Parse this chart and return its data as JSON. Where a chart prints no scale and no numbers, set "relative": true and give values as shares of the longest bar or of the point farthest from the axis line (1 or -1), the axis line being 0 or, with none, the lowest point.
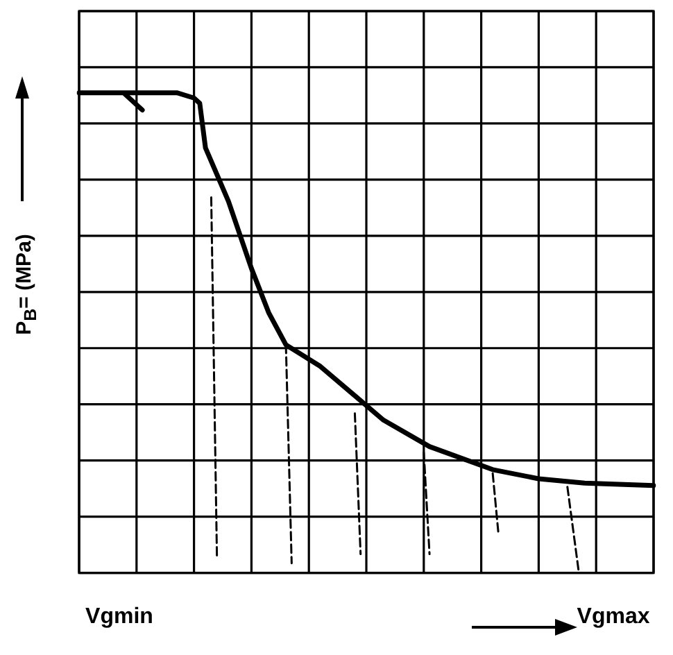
{
  "chart_data": {
    "type": "line",
    "relative": true,
    "ylabel": "P$_{B}$= (MPa)",
    "grid": true,
    "legend": false,
    "marker": "none",
    "categories": [
      null,
      null,
      null,
      null,
      null,
      null,
      null,
      "Vgmin",
      null,
      null,
      null,
      null,
      null,
      null,
      null,
      null,
      null,
      null,
      null,
      null,
      null,
      null,
      null,
      null,
      null,
      null,
      null,
      null,
      null,
      null,
      null,
      null,
      null,
      null,
      null,
      null,
      null,
      null,
      null,
      null,
      null,
      null,
      null,
      null,
      null,
      null,
      null,
      null,
      null,
      null,
      null,
      null,
      null,
      null,
      null,
      null,
      null,
      null,
      null,
      null,
      null,
      null,
      null,
      null,
      null,
      null,
      null,
      null,
      null,
      null,
      null,
      null,
      null,
      null,
      null,
      null,
      null,
      null,
      null,
      null,
      null,
      null,
      null,
      null,
      null,
      null,
      null,
      null,
      null,
      null,
      null,
      null,
      null,
      "Vgmax",
      null,
      null,
      null,
      null,
      null,
      null,
      null
    ],
    "series": [
      {
        "color": "#000000",
        "line_style": "solid",
        "values": [
          1,
          null,
          null,
          null,
          null,
          null,
          null,
          null,
          null,
          null,
          1,
          null,
          null,
          null,
          null,
          null,
          null,
          1,
          null,
          null,
          0.989,
          0.978,
          0.885,
          null,
          null,
          null,
          0.774,
          null,
          null,
          null,
          0.634,
          null,
          null,
          0.542,
          null,
          null,
          0.475,
          null,
          null,
          null,
          null,
          null,
          0.43,
          null,
          null,
          null,
          null,
          null,
          null,
          null,
          null,
          null,
          null,
          0.318,
          null,
          null,
          null,
          null,
          null,
          null,
          null,
          0.263,
          null,
          null,
          null,
          null,
          null,
          null,
          null,
          null,
          null,
          null,
          0.215,
          null,
          null,
          null,
          null,
          null,
          null,
          null,
          0.196,
          null,
          null,
          null,
          null,
          null,
          null,
          null,
          0.187,
          null,
          null,
          null,
          null,
          null,
          null,
          null,
          null,
          null,
          null,
          null,
          0.182
        ]
      },
      {
        "color": "#000000",
        "line_style": "solid",
        "values": [
          null,
          null,
          null,
          null,
          null,
          null,
          null,
          null,
          0.997,
          null,
          null,
          0.964,
          null,
          null,
          null,
          null,
          null,
          null,
          null,
          null,
          null,
          null,
          null,
          null,
          null,
          null,
          null,
          null,
          null,
          null,
          null,
          null,
          null,
          null,
          null,
          null,
          null,
          null,
          null,
          null,
          null,
          null,
          null,
          null,
          null,
          null,
          null,
          null,
          null,
          null,
          null,
          null,
          null,
          null,
          null,
          null,
          null,
          null,
          null,
          null,
          null,
          null,
          null,
          null,
          null,
          null,
          null,
          null,
          null,
          null,
          null,
          null,
          null,
          null,
          null,
          null,
          null,
          null,
          null,
          null,
          null,
          null,
          null,
          null,
          null,
          null,
          null,
          null,
          null,
          null,
          null,
          null,
          null,
          null,
          null,
          null,
          null,
          null,
          null,
          null,
          null
        ]
      },
      {
        "color": "#000000",
        "line_style": "dashed",
        "values": [
          null,
          null,
          null,
          null,
          null,
          null,
          null,
          null,
          null,
          null,
          null,
          null,
          null,
          null,
          null,
          null,
          null,
          null,
          null,
          null,
          null,
          null,
          null,
          0.782,
          0.028,
          null,
          null,
          null,
          null,
          null,
          null,
          null,
          null,
          null,
          null,
          null,
          null,
          null,
          null,
          null,
          null,
          null,
          null,
          null,
          null,
          null,
          null,
          null,
          null,
          null,
          null,
          null,
          null,
          null,
          null,
          null,
          null,
          null,
          null,
          null,
          null,
          null,
          null,
          null,
          null,
          null,
          null,
          null,
          null,
          null,
          null,
          null,
          null,
          null,
          null,
          null,
          null,
          null,
          null,
          null,
          null,
          null,
          null,
          null,
          null,
          null,
          null,
          null,
          null,
          null,
          null,
          null,
          null,
          null,
          null,
          null,
          null,
          null,
          null,
          null,
          null
        ]
      },
      {
        "color": "#000000",
        "line_style": "dashed",
        "values": [
          null,
          null,
          null,
          null,
          null,
          null,
          null,
          null,
          null,
          null,
          null,
          null,
          null,
          null,
          null,
          null,
          null,
          null,
          null,
          null,
          null,
          null,
          null,
          null,
          null,
          null,
          null,
          null,
          null,
          null,
          null,
          null,
          null,
          null,
          null,
          null,
          0.475,
          0.02,
          null,
          null,
          null,
          null,
          null,
          null,
          null,
          null,
          null,
          null,
          null,
          null,
          null,
          null,
          null,
          null,
          null,
          null,
          null,
          null,
          null,
          null,
          null,
          null,
          null,
          null,
          null,
          null,
          null,
          null,
          null,
          null,
          null,
          null,
          null,
          null,
          null,
          null,
          null,
          null,
          null,
          null,
          null,
          null,
          null,
          null,
          null,
          null,
          null,
          null,
          null,
          null,
          null,
          null,
          null,
          null,
          null,
          null,
          null,
          null,
          null,
          null,
          null
        ]
      },
      {
        "color": "#000000",
        "line_style": "dashed",
        "values": [
          null,
          null,
          null,
          null,
          null,
          null,
          null,
          null,
          null,
          null,
          null,
          null,
          null,
          null,
          null,
          null,
          null,
          null,
          null,
          null,
          null,
          null,
          null,
          null,
          null,
          null,
          null,
          null,
          null,
          null,
          null,
          null,
          null,
          null,
          null,
          null,
          null,
          null,
          null,
          null,
          null,
          null,
          null,
          null,
          null,
          null,
          null,
          null,
          0.332,
          0.039,
          null,
          null,
          null,
          null,
          null,
          null,
          null,
          null,
          null,
          null,
          null,
          null,
          null,
          null,
          null,
          null,
          null,
          null,
          null,
          null,
          null,
          null,
          null,
          null,
          null,
          null,
          null,
          null,
          null,
          null,
          null,
          null,
          null,
          null,
          null,
          null,
          null,
          null,
          null,
          null,
          null,
          null,
          null,
          null,
          null,
          null,
          null,
          null,
          null,
          null,
          null
        ]
      },
      {
        "color": "#000000",
        "line_style": "dashed",
        "values": [
          null,
          null,
          null,
          null,
          null,
          null,
          null,
          null,
          null,
          null,
          null,
          null,
          null,
          null,
          null,
          null,
          null,
          null,
          null,
          null,
          null,
          null,
          null,
          null,
          null,
          null,
          null,
          null,
          null,
          null,
          null,
          null,
          null,
          null,
          null,
          null,
          null,
          null,
          null,
          null,
          null,
          null,
          null,
          null,
          null,
          null,
          null,
          null,
          null,
          null,
          null,
          null,
          null,
          null,
          null,
          null,
          null,
          null,
          null,
          null,
          0.251,
          0.039,
          null,
          null,
          null,
          null,
          null,
          null,
          null,
          null,
          null,
          null,
          null,
          null,
          null,
          null,
          null,
          null,
          null,
          null,
          null,
          null,
          null,
          null,
          null,
          null,
          null,
          null,
          null,
          null,
          null,
          null,
          null,
          null,
          null,
          null,
          null,
          null,
          null,
          null,
          null
        ]
      },
      {
        "color": "#000000",
        "line_style": "dashed",
        "values": [
          null,
          null,
          null,
          null,
          null,
          null,
          null,
          null,
          null,
          null,
          null,
          null,
          null,
          null,
          null,
          null,
          null,
          null,
          null,
          null,
          null,
          null,
          null,
          null,
          null,
          null,
          null,
          null,
          null,
          null,
          null,
          null,
          null,
          null,
          null,
          null,
          null,
          null,
          null,
          null,
          null,
          null,
          null,
          null,
          null,
          null,
          null,
          null,
          null,
          null,
          null,
          null,
          null,
          null,
          null,
          null,
          null,
          null,
          null,
          null,
          null,
          null,
          null,
          null,
          null,
          null,
          null,
          null,
          null,
          null,
          null,
          null,
          0.207,
          0.081,
          null,
          null,
          null,
          null,
          null,
          null,
          null,
          null,
          null,
          null,
          null,
          null,
          null,
          null,
          null,
          null,
          null,
          null,
          null,
          null,
          null,
          null,
          null,
          null,
          null,
          null,
          null
        ]
      },
      {
        "color": "#000000",
        "line_style": "dashed",
        "values": [
          null,
          null,
          null,
          null,
          null,
          null,
          null,
          null,
          null,
          null,
          null,
          null,
          null,
          null,
          null,
          null,
          null,
          null,
          null,
          null,
          null,
          null,
          null,
          null,
          null,
          null,
          null,
          null,
          null,
          null,
          null,
          null,
          null,
          null,
          null,
          null,
          null,
          null,
          null,
          null,
          null,
          null,
          null,
          null,
          null,
          null,
          null,
          null,
          null,
          null,
          null,
          null,
          null,
          null,
          null,
          null,
          null,
          null,
          null,
          null,
          null,
          null,
          null,
          null,
          null,
          null,
          null,
          null,
          null,
          null,
          null,
          null,
          null,
          null,
          null,
          null,
          null,
          null,
          null,
          null,
          null,
          null,
          null,
          null,
          null,
          0.179,
          null,
          0,
          null,
          null,
          null,
          null,
          null,
          null,
          null,
          null,
          null,
          null,
          null,
          null,
          null
        ]
      }
    ]
  }
}
